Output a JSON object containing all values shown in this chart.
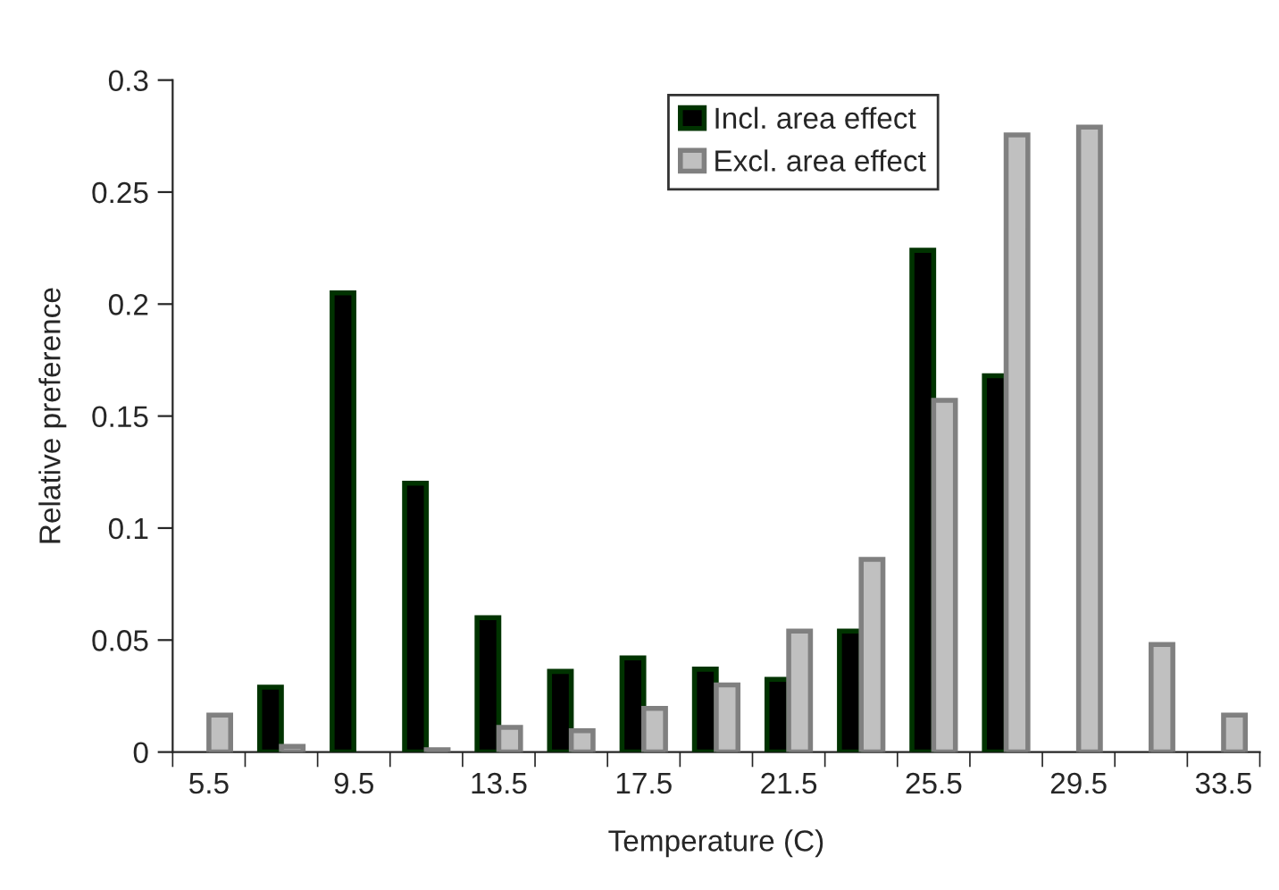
{
  "chart_data": {
    "type": "bar",
    "xlabel": "Temperature (C)",
    "ylabel": "Relative preference",
    "categories": [
      "5.5",
      null,
      "9.5",
      null,
      "13.5",
      null,
      "17.5",
      null,
      "21.5",
      null,
      "25.5",
      null,
      "29.5",
      null,
      "33.5"
    ],
    "series": [
      {
        "name": "Incl. area effect",
        "color": "#000000",
        "values": [
          null,
          0.029,
          0.205,
          0.12,
          0.06,
          0.036,
          0.042,
          0.037,
          0.0325,
          0.054,
          0.224,
          0.168,
          null,
          null,
          null
        ]
      },
      {
        "name": "Excl. area effect",
        "color": "#c0c0c0",
        "values": [
          0.0165,
          0.0025,
          null,
          0.001,
          0.011,
          0.0095,
          0.0195,
          0.03,
          0.054,
          0.086,
          0.157,
          0.2755,
          0.279,
          0.048,
          0.0165
        ]
      }
    ],
    "ylim": [
      0,
      0.3
    ],
    "yticks": [
      0,
      0.05,
      0.1,
      0.15,
      0.2,
      0.25,
      0.3
    ],
    "grid": false,
    "legend": "top"
  }
}
